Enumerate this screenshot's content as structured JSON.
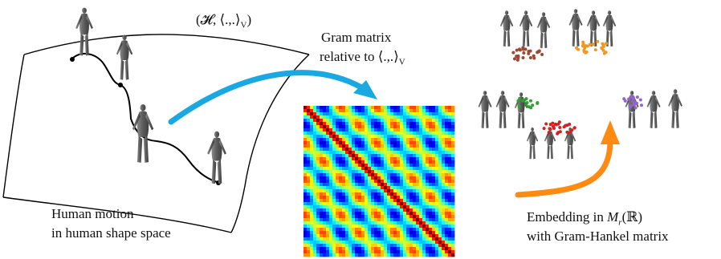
{
  "labels": {
    "hilbert_space": "(𝓗, ⟨.,.⟩",
    "hilbert_space_sub": "V",
    "hilbert_space_close": ")",
    "gram_line1": "Gram matrix",
    "gram_line2": "relative to ⟨.,.⟩",
    "gram_line2_sub": "V",
    "motion_line1": "Human motion",
    "motion_line2": "in human shape space",
    "embed_line1_pre": "Embedding in ",
    "embed_line1_math": "M",
    "embed_line1_sub": "r",
    "embed_line1_post": "(ℝ)",
    "embed_line2": "with Gram-Hankel matrix"
  },
  "colors": {
    "arrow_blue": "#19a9e0",
    "arrow_orange": "#ff8a12",
    "cluster_brown": "#9a4a32",
    "cluster_orange": "#f29624",
    "cluster_green": "#2ea02e",
    "cluster_red": "#d62020",
    "cluster_purple": "#9364c8",
    "figure_gray": "#6e6e6e"
  }
}
